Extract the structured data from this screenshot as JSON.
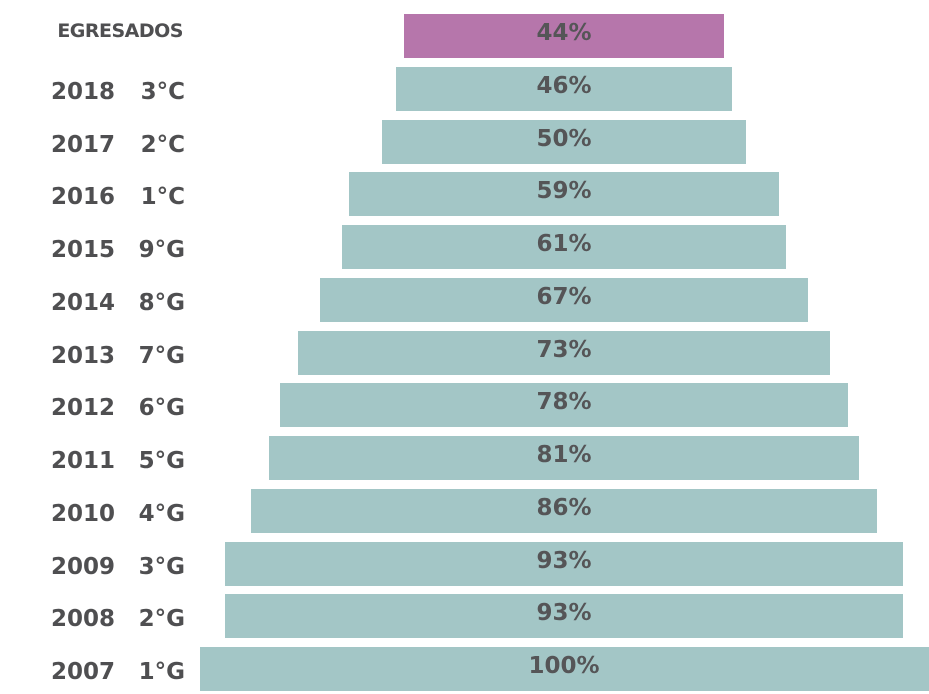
{
  "chart_data": {
    "type": "bar",
    "orientation": "horizontal-centered",
    "header_label": "EGRESADOS",
    "rows": [
      {
        "year": "",
        "grade": "",
        "label": "EGRESADOS",
        "value": 44,
        "value_label": "44%",
        "highlight": true
      },
      {
        "year": "2018",
        "grade": "3°C",
        "value": 46,
        "value_label": "46%",
        "highlight": false
      },
      {
        "year": "2017",
        "grade": "2°C",
        "value": 50,
        "value_label": "50%",
        "highlight": false
      },
      {
        "year": "2016",
        "grade": "1°C",
        "value": 59,
        "value_label": "59%",
        "highlight": false
      },
      {
        "year": "2015",
        "grade": "9°G",
        "value": 61,
        "value_label": "61%",
        "highlight": false
      },
      {
        "year": "2014",
        "grade": "8°G",
        "value": 67,
        "value_label": "67%",
        "highlight": false
      },
      {
        "year": "2013",
        "grade": "7°G",
        "value": 73,
        "value_label": "73%",
        "highlight": false
      },
      {
        "year": "2012",
        "grade": "6°G",
        "value": 78,
        "value_label": "78%",
        "highlight": false
      },
      {
        "year": "2011",
        "grade": "5°G",
        "value": 81,
        "value_label": "81%",
        "highlight": false
      },
      {
        "year": "2010",
        "grade": "4°G",
        "value": 86,
        "value_label": "86%",
        "highlight": false
      },
      {
        "year": "2009",
        "grade": "3°G",
        "value": 93,
        "value_label": "93%",
        "highlight": false
      },
      {
        "year": "2008",
        "grade": "2°G",
        "value": 93,
        "value_label": "93%",
        "highlight": false
      },
      {
        "year": "2007",
        "grade": "1°G",
        "value": 100,
        "value_label": "100%",
        "highlight": false
      }
    ],
    "xlim": [
      0,
      100
    ],
    "colors": {
      "bar": "#a3c6c6",
      "highlight": "#b676ab",
      "text": "#4f4f51"
    }
  }
}
